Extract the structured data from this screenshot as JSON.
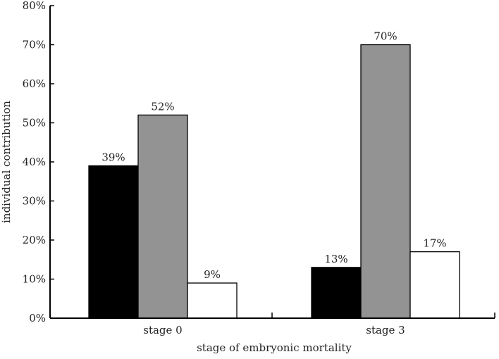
{
  "chart_data": {
    "type": "bar",
    "title": "",
    "xlabel": "stage of embryonic mortality",
    "ylabel": "individual contribution",
    "ylim": [
      0,
      80
    ],
    "yticks": [
      "0%",
      "10%",
      "20%",
      "30%",
      "40%",
      "50%",
      "60%",
      "70%",
      "80%"
    ],
    "categories": [
      "stage 0",
      "stage 3"
    ],
    "series": [
      {
        "name": "series 1",
        "color": "#000000",
        "values": [
          39,
          13
        ],
        "labels": [
          "39%",
          "13%"
        ]
      },
      {
        "name": "series 2",
        "color": "#939393",
        "values": [
          52,
          70
        ],
        "labels": [
          "52%",
          "70%"
        ]
      },
      {
        "name": "series 3",
        "color": "#ffffff",
        "values": [
          9,
          17
        ],
        "labels": [
          "9%",
          "17%"
        ]
      }
    ],
    "grid": false,
    "legend": "none"
  }
}
